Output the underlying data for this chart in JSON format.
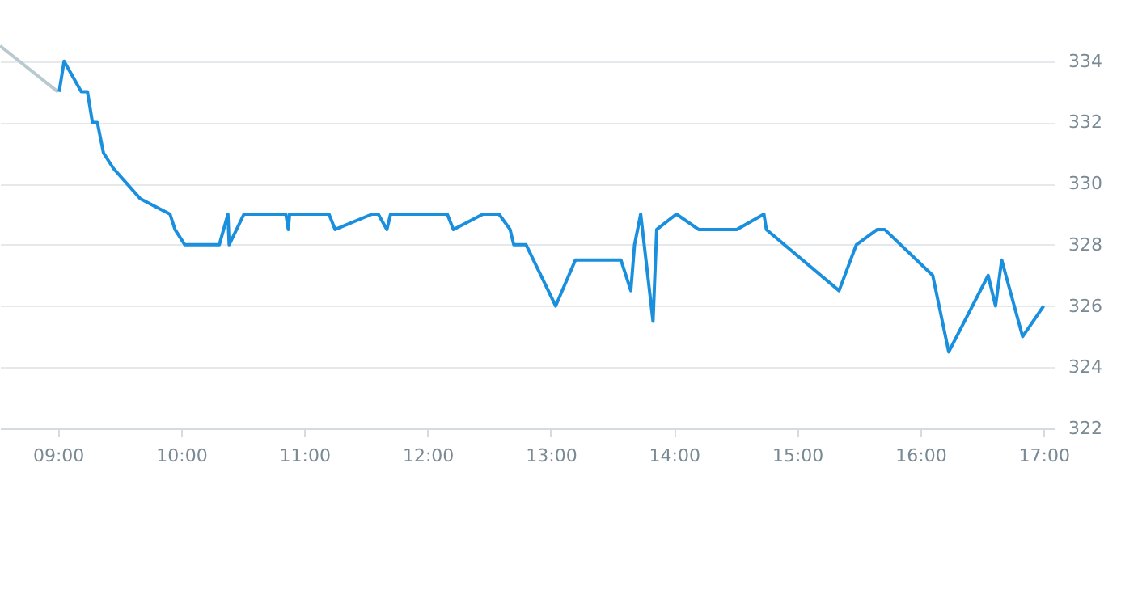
{
  "chart_data": {
    "type": "line",
    "xlim": [
      8.53,
      17.09
    ],
    "ylim": [
      322,
      336
    ],
    "xticks": [
      {
        "value": 9,
        "label": "09:00"
      },
      {
        "value": 10,
        "label": "10:00"
      },
      {
        "value": 11,
        "label": "11:00"
      },
      {
        "value": 12,
        "label": "12:00"
      },
      {
        "value": 13,
        "label": "13:00"
      },
      {
        "value": 14,
        "label": "14:00"
      },
      {
        "value": 15,
        "label": "15:00"
      },
      {
        "value": 16,
        "label": "16:00"
      },
      {
        "value": 17,
        "label": "17:00"
      }
    ],
    "yticks": [
      322,
      324,
      326,
      328,
      330,
      332,
      334
    ],
    "grid": "y",
    "marker": "none",
    "line_style": "solid",
    "series": [
      {
        "color": "#b8c9d0",
        "x": [
          8.53,
          9.0
        ],
        "values": [
          334.5,
          333.0
        ]
      },
      {
        "color": "#1a8fdd",
        "x": [
          9.01,
          9.05,
          9.19,
          9.24,
          9.28,
          9.32,
          9.37,
          9.45,
          9.67,
          9.91,
          9.95,
          10.03,
          10.31,
          10.38,
          10.39,
          10.51,
          10.85,
          10.87,
          10.88,
          11.2,
          11.25,
          11.55,
          11.6,
          11.67,
          11.7,
          12.16,
          12.21,
          12.45,
          12.58,
          12.67,
          12.7,
          12.8,
          13.04,
          13.2,
          13.57,
          13.65,
          13.68,
          13.73,
          13.83,
          13.86,
          14.02,
          14.2,
          14.51,
          14.73,
          14.75,
          15.34,
          15.48,
          15.65,
          15.71,
          16.1,
          16.23,
          16.55,
          16.61,
          16.66,
          16.83,
          17.0
        ],
        "values": [
          333.0,
          334.0,
          333.0,
          333.0,
          332.0,
          332.0,
          331.0,
          330.5,
          329.5,
          329.0,
          328.5,
          328.0,
          328.0,
          329.0,
          328.0,
          329.0,
          329.0,
          328.5,
          329.0,
          329.0,
          328.5,
          329.0,
          329.0,
          328.5,
          329.0,
          329.0,
          328.5,
          329.0,
          329.0,
          328.5,
          328.0,
          328.0,
          326.0,
          327.5,
          327.5,
          326.5,
          328.0,
          329.0,
          325.5,
          328.5,
          329.0,
          328.5,
          328.5,
          329.0,
          328.5,
          326.5,
          328.0,
          328.5,
          328.5,
          327.0,
          324.5,
          327.0,
          326.0,
          327.5,
          325.0,
          326.0
        ]
      }
    ]
  }
}
